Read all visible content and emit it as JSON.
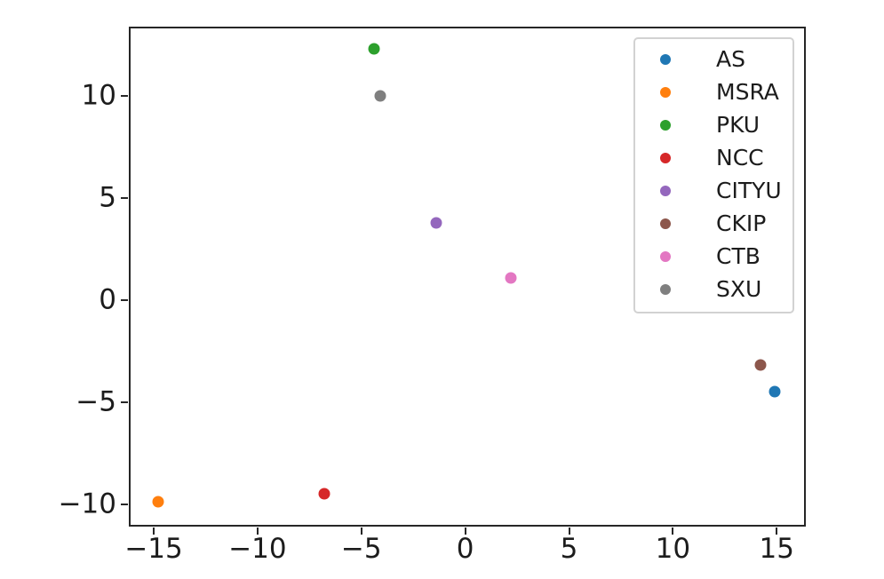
{
  "chart_data": {
    "type": "scatter",
    "title": "",
    "xlabel": "",
    "ylabel": "",
    "xlim": [
      -16.2,
      16.4
    ],
    "ylim": [
      -11.1,
      13.4
    ],
    "grid": false,
    "background_color": "#ffffff",
    "axes": {
      "spine_color": "#262626",
      "tick_color": "#262626",
      "tick_label_color": "#1c1c1c",
      "xticks": {
        "values": [
          -15,
          -10,
          -5,
          0,
          5,
          10,
          15
        ],
        "labels": [
          "−15",
          "−10",
          "−5",
          "0",
          "5",
          "10",
          "15"
        ]
      },
      "yticks": {
        "values": [
          -10,
          -5,
          0,
          5,
          10
        ],
        "labels": [
          "−10",
          "−5",
          "0",
          "5",
          "10"
        ]
      }
    },
    "legend": {
      "position": "upper right",
      "border_color": "#d2d2d2",
      "background": "#ffffff"
    },
    "series": [
      {
        "name": "AS",
        "color": "#1f77b4",
        "marker": "circle",
        "points": [
          [
            14.9,
            -4.5
          ]
        ]
      },
      {
        "name": "MSRA",
        "color": "#ff7f0e",
        "marker": "circle",
        "points": [
          [
            -14.8,
            -9.9
          ]
        ]
      },
      {
        "name": "PKU",
        "color": "#2ca02c",
        "marker": "circle",
        "points": [
          [
            -4.4,
            12.3
          ]
        ]
      },
      {
        "name": "NCC",
        "color": "#d62728",
        "marker": "circle",
        "points": [
          [
            -6.8,
            -9.5
          ]
        ]
      },
      {
        "name": "CITYU",
        "color": "#9467bd",
        "marker": "circle",
        "points": [
          [
            -1.4,
            3.8
          ]
        ]
      },
      {
        "name": "CKIP",
        "color": "#8c564b",
        "marker": "circle",
        "points": [
          [
            14.2,
            -3.2
          ]
        ]
      },
      {
        "name": "CTB",
        "color": "#e377c2",
        "marker": "circle",
        "points": [
          [
            2.2,
            1.1
          ]
        ]
      },
      {
        "name": "SXU",
        "color": "#7f7f7f",
        "marker": "circle",
        "points": [
          [
            -4.1,
            10.0
          ]
        ]
      }
    ]
  }
}
